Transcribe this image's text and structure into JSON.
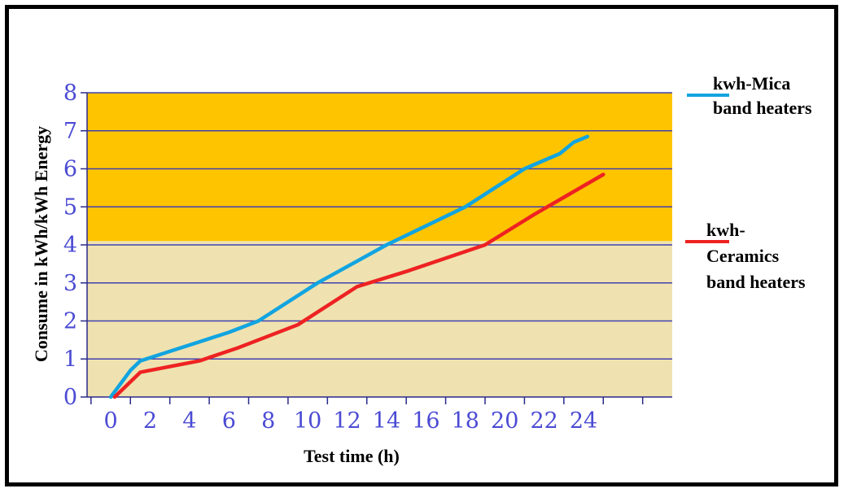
{
  "chart_data": {
    "type": "line",
    "title": "",
    "xlabel": "Test time (h)",
    "ylabel": "Consume in kWh/kWh Energy",
    "xlim": [
      -1.2,
      28.5
    ],
    "ylim": [
      0,
      8
    ],
    "x_ticks": [
      0,
      2,
      4,
      6,
      8,
      10,
      12,
      14,
      16,
      18,
      20,
      22,
      24
    ],
    "y_ticks": [
      0,
      1,
      2,
      3,
      4,
      5,
      6,
      7,
      8
    ],
    "grid": "horizontal",
    "background_bands": [
      {
        "from": 0,
        "to": 4.1,
        "color": "#efe2b0"
      },
      {
        "from": 4.1,
        "to": 8,
        "color": "#fec400"
      }
    ],
    "legend_position": "right",
    "series": [
      {
        "name": "kwh-Mica band heaters",
        "legend_lines": [
          "kwh-Mica",
          "band heaters"
        ],
        "color": "#12a4e0",
        "points": [
          [
            0,
            0
          ],
          [
            1,
            0.7
          ],
          [
            1.5,
            0.95
          ],
          [
            3,
            1.2
          ],
          [
            6,
            1.7
          ],
          [
            7.5,
            2.0
          ],
          [
            10.5,
            3.0
          ],
          [
            14,
            4.0
          ],
          [
            18,
            5.0
          ],
          [
            21,
            6.0
          ],
          [
            22.8,
            6.4
          ],
          [
            23.5,
            6.7
          ],
          [
            24.2,
            6.85
          ]
        ]
      },
      {
        "name": "kwh-Ceramics band heaters",
        "legend_lines": [
          "kwh-",
          "Ceramics",
          "band heaters"
        ],
        "color": "#ee2222",
        "points": [
          [
            0.2,
            0
          ],
          [
            1.5,
            0.65
          ],
          [
            3,
            0.8
          ],
          [
            4.5,
            0.95
          ],
          [
            6.5,
            1.3
          ],
          [
            9.5,
            1.9
          ],
          [
            12.5,
            2.9
          ],
          [
            15,
            3.3
          ],
          [
            19,
            4.0
          ],
          [
            21.5,
            4.8
          ],
          [
            23.5,
            5.4
          ],
          [
            25,
            5.85
          ]
        ]
      }
    ]
  }
}
